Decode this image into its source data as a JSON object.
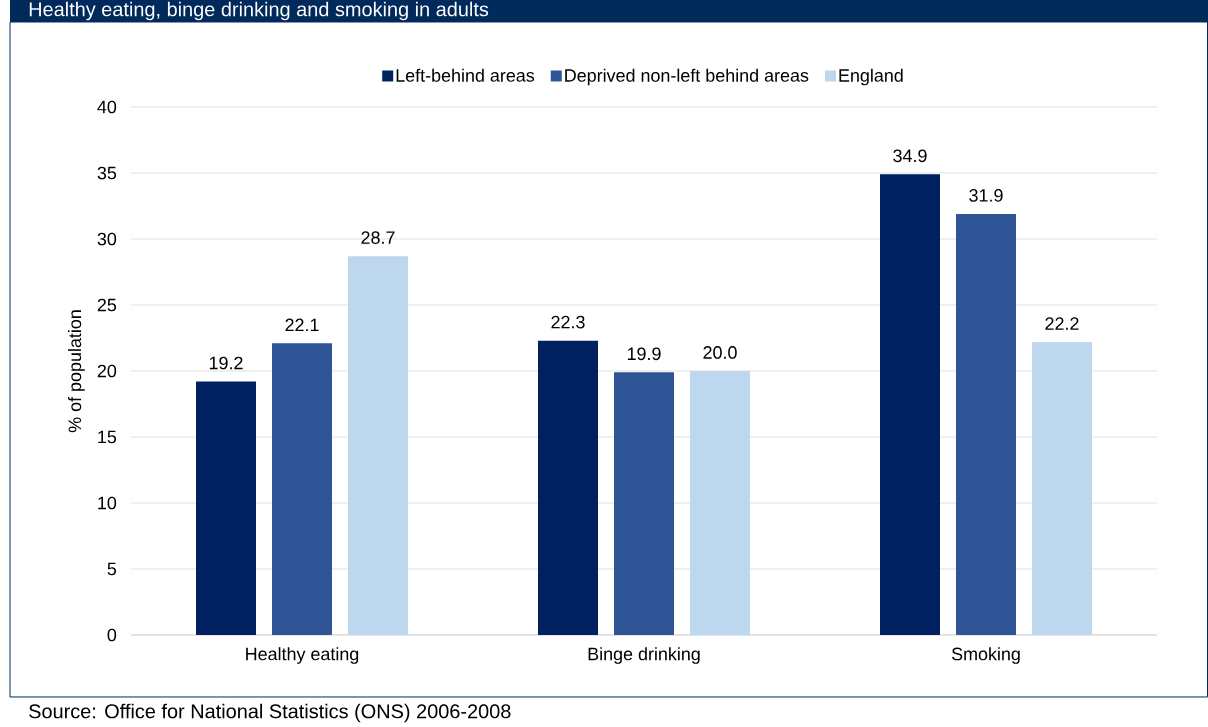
{
  "chart_data": {
    "type": "bar",
    "title": "Healthy eating, binge drinking and smoking in adults",
    "ylabel": "% of population",
    "categories": [
      "Healthy eating",
      "Binge drinking",
      "Smoking"
    ],
    "series": [
      {
        "name": "Left-behind areas",
        "color": "#002060",
        "values": [
          19.2,
          22.3,
          34.9
        ],
        "value_labels": [
          "19.2",
          "22.3",
          "34.9"
        ]
      },
      {
        "name": "Deprived non-left behind areas",
        "color": "#2f5597",
        "values": [
          22.1,
          19.9,
          31.9
        ],
        "value_labels": [
          "22.1",
          "19.9",
          "31.9"
        ]
      },
      {
        "name": "England",
        "color": "#bdd7ee",
        "values": [
          28.7,
          20.0,
          22.2
        ],
        "value_labels": [
          "28.7",
          "20.0",
          "22.2"
        ]
      }
    ],
    "ylim": [
      0,
      40
    ],
    "yticks": [
      0,
      5,
      10,
      15,
      20,
      25,
      30,
      35,
      40
    ],
    "grid": "y",
    "legend": "top",
    "annotations": [
      "Source: Office for National Statistics (ONS) 2006-2008"
    ]
  }
}
